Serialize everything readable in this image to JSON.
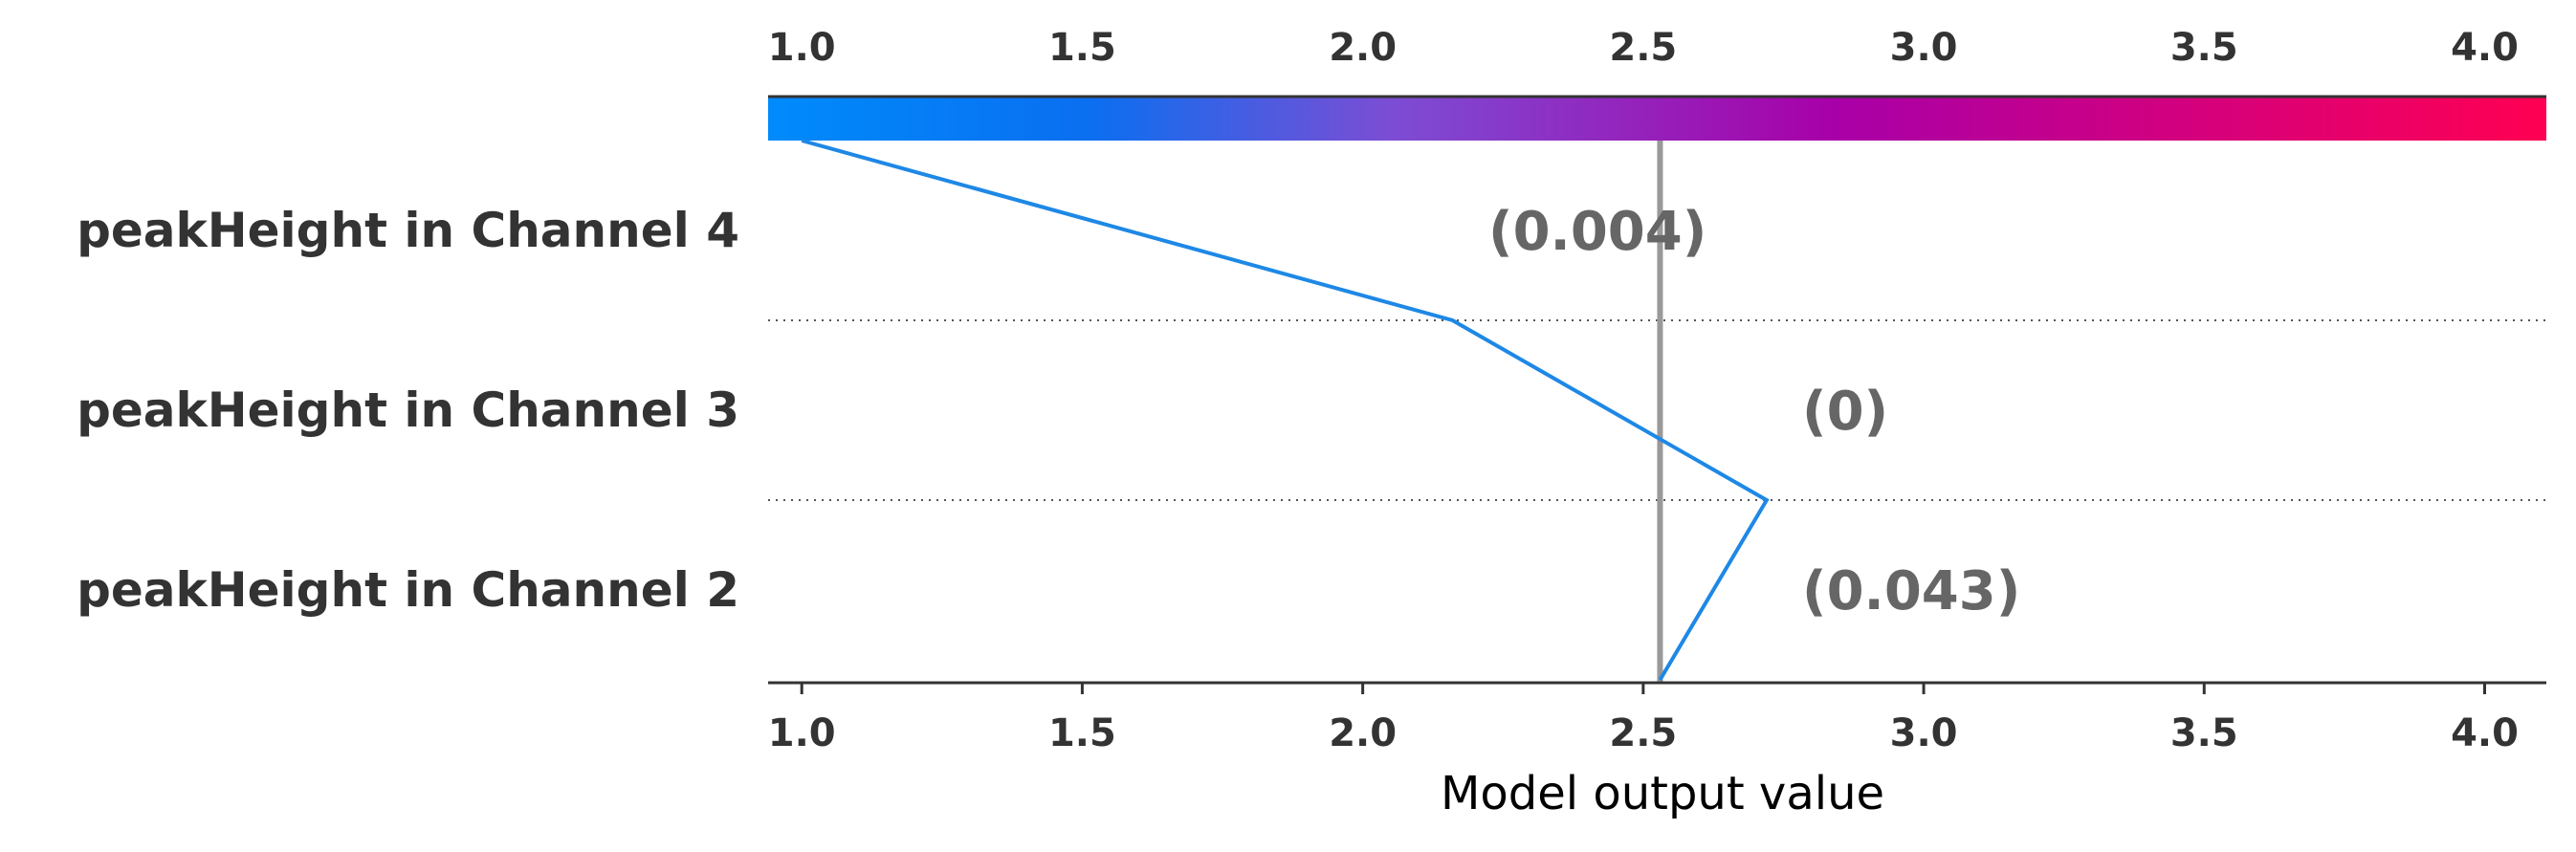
{
  "chart_data": {
    "type": "decision-plot",
    "xlabel": "Model output value",
    "xlim": [
      0.94,
      4.11
    ],
    "ticks": [
      1.0,
      1.5,
      2.0,
      2.5,
      3.0,
      3.5,
      4.0
    ],
    "tick_labels": [
      "1.0",
      "1.5",
      "2.0",
      "2.5",
      "3.0",
      "3.5",
      "4.0"
    ],
    "base_value": 2.53,
    "colorbar": {
      "range": [
        1.0,
        4.0
      ],
      "colors": [
        "#008bfb",
        "#7c4dd4",
        "#a800a8",
        "#ff0052"
      ]
    },
    "features": [
      {
        "name": "peakHeight in Channel 4",
        "value_label": "(0.004)"
      },
      {
        "name": "peakHeight in Channel 3",
        "value_label": "(0)"
      },
      {
        "name": "peakHeight in Channel 2",
        "value_label": "(0.043)"
      }
    ],
    "path": [
      {
        "x": 1.0
      },
      {
        "x": 2.16
      },
      {
        "x": 2.72
      },
      {
        "x": 2.53
      }
    ],
    "line_color": "#1e88e5",
    "base_line_color": "#999999"
  }
}
